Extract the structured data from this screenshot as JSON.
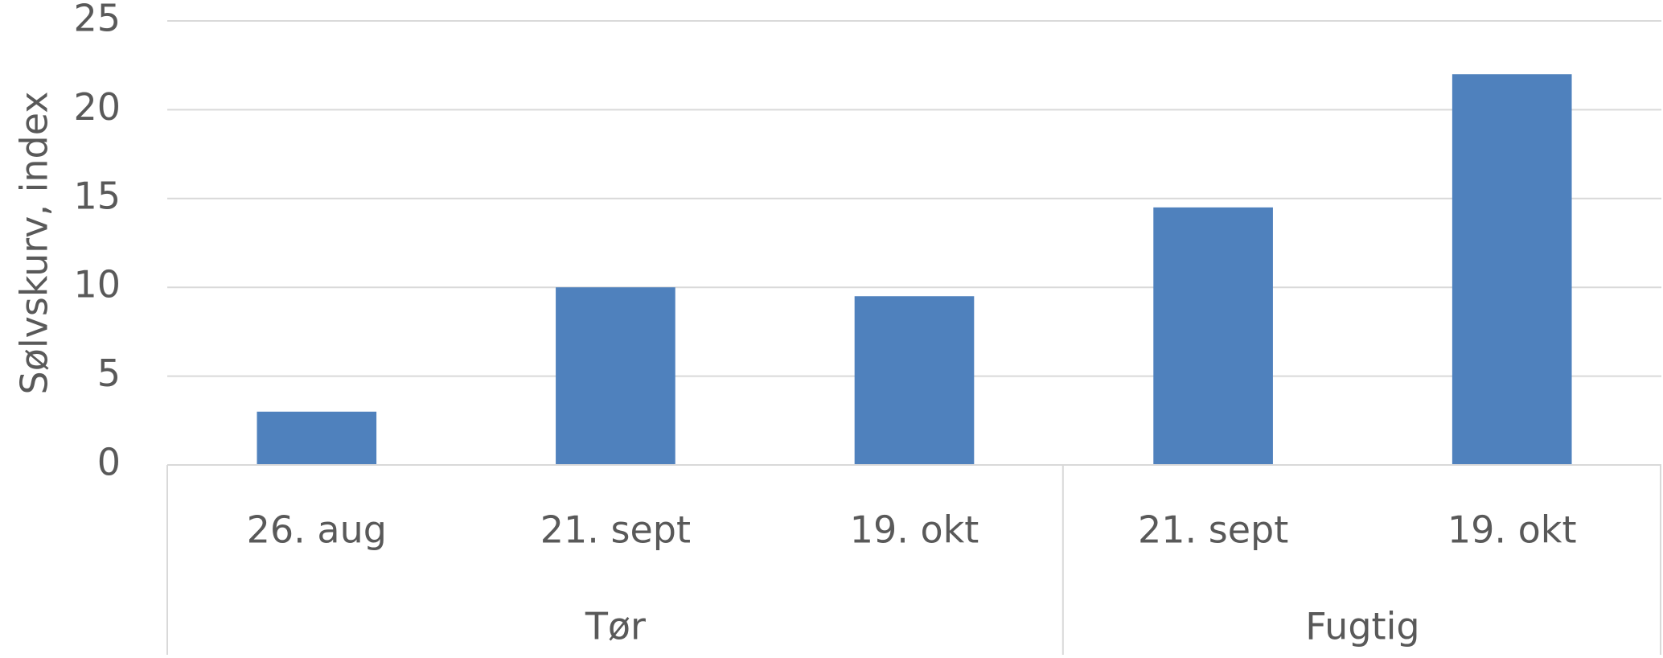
{
  "chart_data": {
    "type": "bar",
    "y_label": "Sølvskurv, index",
    "color": "#4f81bd",
    "groups": [
      {
        "name": "Tør",
        "categories": [
          "26. aug",
          "21. sept",
          "19. okt"
        ],
        "values": [
          3,
          10,
          9.5
        ]
      },
      {
        "name": "Fugtig",
        "categories": [
          "21. sept",
          "19. okt"
        ],
        "values": [
          14.5,
          22
        ]
      }
    ],
    "ylim": [
      0,
      25
    ],
    "yticks": [
      0,
      5,
      10,
      15,
      20,
      25
    ],
    "grid": true
  }
}
